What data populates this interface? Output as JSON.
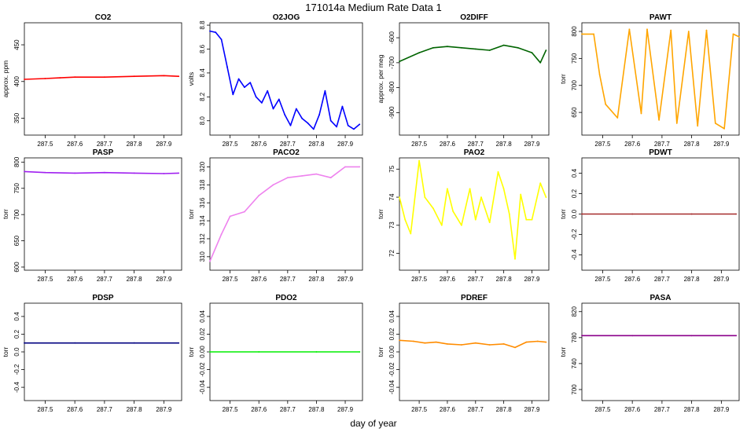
{
  "figure": {
    "title": "171014a   Medium Rate Data 1",
    "xlabel": "day of year"
  },
  "chart_data": [
    {
      "type": "line",
      "title": "CO2",
      "ylabel": "approx. ppm",
      "color": "#ff0000",
      "xlim": [
        287.43,
        287.96
      ],
      "ylim": [
        327,
        480
      ],
      "xticks": [
        287.5,
        287.6,
        287.7,
        287.8,
        287.9
      ],
      "yticks": [
        350,
        400,
        450
      ],
      "x": [
        287.43,
        287.5,
        287.55,
        287.6,
        287.7,
        287.8,
        287.9,
        287.95
      ],
      "y": [
        403,
        404,
        405,
        406,
        406,
        407,
        408,
        407
      ]
    },
    {
      "type": "line",
      "title": "O2JOG",
      "ylabel": "volts",
      "color": "#0000ff",
      "xlim": [
        287.43,
        287.96
      ],
      "ylim": [
        7.88,
        8.82
      ],
      "xticks": [
        287.5,
        287.6,
        287.7,
        287.8,
        287.9
      ],
      "yticks": [
        8.0,
        8.2,
        8.4,
        8.6,
        8.8
      ],
      "x": [
        287.43,
        287.45,
        287.47,
        287.49,
        287.51,
        287.53,
        287.55,
        287.57,
        287.59,
        287.61,
        287.63,
        287.65,
        287.67,
        287.69,
        287.71,
        287.73,
        287.75,
        287.77,
        287.79,
        287.81,
        287.83,
        287.85,
        287.87,
        287.89,
        287.91,
        287.93,
        287.95
      ],
      "y": [
        8.75,
        8.74,
        8.68,
        8.45,
        8.22,
        8.35,
        8.28,
        8.32,
        8.2,
        8.15,
        8.25,
        8.1,
        8.18,
        8.05,
        7.96,
        8.1,
        8.02,
        7.98,
        7.93,
        8.05,
        8.25,
        8.0,
        7.95,
        8.12,
        7.96,
        7.93,
        7.97
      ]
    },
    {
      "type": "line",
      "title": "O2DIFF",
      "ylabel": "approx. per meg",
      "color": "#006400",
      "xlim": [
        287.43,
        287.96
      ],
      "ylim": [
        -990,
        -540
      ],
      "xticks": [
        287.5,
        287.6,
        287.7,
        287.8,
        287.9
      ],
      "yticks": [
        -900,
        -800,
        -700,
        -600
      ],
      "x": [
        287.43,
        287.5,
        287.55,
        287.6,
        287.65,
        287.7,
        287.75,
        287.8,
        287.85,
        287.9,
        287.93,
        287.95
      ],
      "y": [
        -695,
        -660,
        -640,
        -635,
        -640,
        -645,
        -650,
        -630,
        -640,
        -660,
        -700,
        -650
      ]
    },
    {
      "type": "line",
      "title": "PAWT",
      "ylabel": "torr",
      "color": "#ffa500",
      "xlim": [
        287.43,
        287.96
      ],
      "ylim": [
        608,
        816
      ],
      "xticks": [
        287.5,
        287.6,
        287.7,
        287.8,
        287.9
      ],
      "yticks": [
        650,
        700,
        750,
        800
      ],
      "x": [
        287.43,
        287.47,
        287.49,
        287.51,
        287.55,
        287.59,
        287.63,
        287.65,
        287.69,
        287.73,
        287.75,
        287.79,
        287.82,
        287.85,
        287.88,
        287.91,
        287.94,
        287.96
      ],
      "y": [
        795,
        795,
        720,
        665,
        640,
        804,
        648,
        804,
        636,
        802,
        630,
        800,
        625,
        802,
        630,
        620,
        795,
        790
      ]
    },
    {
      "type": "line",
      "title": "PASP",
      "ylabel": "torr",
      "color": "#a020f0",
      "xlim": [
        287.43,
        287.96
      ],
      "ylim": [
        594,
        808
      ],
      "xticks": [
        287.5,
        287.6,
        287.7,
        287.8,
        287.9
      ],
      "yticks": [
        600,
        650,
        700,
        750,
        800
      ],
      "x": [
        287.43,
        287.5,
        287.6,
        287.7,
        287.8,
        287.9,
        287.95
      ],
      "y": [
        782,
        780,
        779,
        780,
        779,
        778,
        779
      ]
    },
    {
      "type": "line",
      "title": "PACO2",
      "ylabel": "torr",
      "color": "#ee82ee",
      "xlim": [
        287.43,
        287.96
      ],
      "ylim": [
        308.5,
        321
      ],
      "xticks": [
        287.5,
        287.6,
        287.7,
        287.8,
        287.9
      ],
      "yticks": [
        310,
        312,
        314,
        316,
        318,
        320
      ],
      "x": [
        287.43,
        287.47,
        287.5,
        287.55,
        287.6,
        287.65,
        287.7,
        287.75,
        287.8,
        287.85,
        287.9,
        287.95
      ],
      "y": [
        309.5,
        312.5,
        314.5,
        315,
        316.8,
        318,
        318.8,
        319,
        319.2,
        318.8,
        320,
        320
      ]
    },
    {
      "type": "line",
      "title": "PAO2",
      "ylabel": "torr",
      "color": "#ffff00",
      "xlim": [
        287.43,
        287.96
      ],
      "ylim": [
        71.4,
        75.4
      ],
      "xticks": [
        287.5,
        287.6,
        287.7,
        287.8,
        287.9
      ],
      "yticks": [
        72,
        73,
        74,
        75
      ],
      "x": [
        287.43,
        287.45,
        287.47,
        287.5,
        287.52,
        287.55,
        287.58,
        287.6,
        287.62,
        287.65,
        287.68,
        287.7,
        287.72,
        287.75,
        287.78,
        287.8,
        287.82,
        287.84,
        287.86,
        287.88,
        287.9,
        287.93,
        287.95
      ],
      "y": [
        74,
        73.2,
        72.7,
        75.3,
        74,
        73.6,
        73,
        74.3,
        73.5,
        73,
        74.3,
        73.2,
        74,
        73.1,
        74.9,
        74.3,
        73.4,
        71.8,
        74.1,
        73.2,
        73.2,
        74.5,
        74
      ]
    },
    {
      "type": "line",
      "title": "PDWT",
      "ylabel": "torr",
      "color": "#a52a2a",
      "xlim": [
        287.43,
        287.96
      ],
      "ylim": [
        -0.55,
        0.55
      ],
      "xticks": [
        287.5,
        287.6,
        287.7,
        287.8,
        287.9
      ],
      "yticks": [
        -0.4,
        -0.2,
        0.0,
        0.2,
        0.4
      ],
      "x": [
        287.43,
        287.6,
        287.8,
        287.95
      ],
      "y": [
        0,
        0,
        0,
        0
      ]
    },
    {
      "type": "line",
      "title": "PDSP",
      "ylabel": "torr",
      "color": "#000080",
      "xlim": [
        287.43,
        287.96
      ],
      "ylim": [
        -0.55,
        0.55
      ],
      "xticks": [
        287.5,
        287.6,
        287.7,
        287.8,
        287.9
      ],
      "yticks": [
        -0.4,
        -0.2,
        0.0,
        0.2,
        0.4
      ],
      "x": [
        287.43,
        287.6,
        287.8,
        287.95
      ],
      "y": [
        0.1,
        0.1,
        0.1,
        0.1
      ]
    },
    {
      "type": "line",
      "title": "PDO2",
      "ylabel": "torr",
      "color": "#00ee00",
      "xlim": [
        287.43,
        287.96
      ],
      "ylim": [
        -0.055,
        0.055
      ],
      "xticks": [
        287.5,
        287.6,
        287.7,
        287.8,
        287.9
      ],
      "yticks": [
        -0.04,
        -0.02,
        0.0,
        0.02,
        0.04
      ],
      "x": [
        287.43,
        287.6,
        287.8,
        287.95
      ],
      "y": [
        0,
        0,
        0,
        0
      ]
    },
    {
      "type": "line",
      "title": "PDREF",
      "ylabel": "torr",
      "color": "#ff8c00",
      "xlim": [
        287.43,
        287.96
      ],
      "ylim": [
        -0.055,
        0.055
      ],
      "xticks": [
        287.5,
        287.6,
        287.7,
        287.8,
        287.9
      ],
      "yticks": [
        -0.04,
        -0.02,
        0.0,
        0.02,
        0.04
      ],
      "x": [
        287.43,
        287.48,
        287.52,
        287.56,
        287.6,
        287.65,
        287.7,
        287.75,
        287.8,
        287.84,
        287.88,
        287.92,
        287.95
      ],
      "y": [
        0.013,
        0.012,
        0.01,
        0.011,
        0.009,
        0.008,
        0.01,
        0.008,
        0.009,
        0.005,
        0.011,
        0.012,
        0.011
      ]
    },
    {
      "type": "line",
      "title": "PASA",
      "ylabel": "torr",
      "color": "#8b008b",
      "xlim": [
        287.43,
        287.96
      ],
      "ylim": [
        683,
        833
      ],
      "xticks": [
        287.5,
        287.6,
        287.7,
        287.8,
        287.9
      ],
      "yticks": [
        700,
        740,
        780,
        820
      ],
      "x": [
        287.43,
        287.6,
        287.8,
        287.95
      ],
      "y": [
        783,
        783,
        783,
        783
      ]
    }
  ]
}
